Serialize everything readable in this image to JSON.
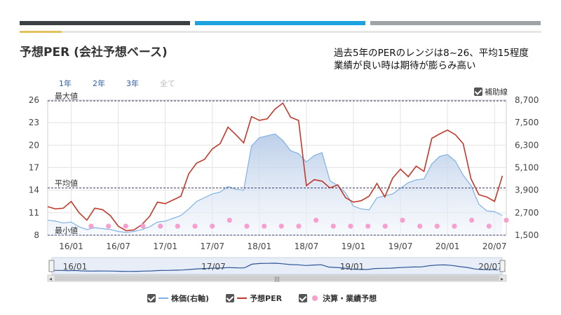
{
  "header": {
    "title": "予想PER (会社予想ベース)",
    "annotation_line1": "過去5年のPERのレンジは8~26、平均15程度",
    "annotation_line2": "業績が良い時は期待が膨らみ高い"
  },
  "range_tabs": [
    {
      "label": "1年",
      "active": true
    },
    {
      "label": "2年",
      "active": true
    },
    {
      "label": "3年",
      "active": true
    },
    {
      "label": "全て",
      "active": false
    }
  ],
  "aux_label": "補助線",
  "legend": [
    {
      "label": "株価(右軸)",
      "color": "#7fb2e5"
    },
    {
      "label": "予想PER",
      "color": "#c0392b"
    },
    {
      "label": "決算・業績予想",
      "color": "#f6a0d0"
    }
  ],
  "chart_data": {
    "type": "line",
    "x_ticks": [
      "16/01",
      "16/07",
      "17/01",
      "17/07",
      "18/01",
      "18/07",
      "19/01",
      "19/07",
      "20/01",
      "20/07"
    ],
    "y_left_ticks": [
      "26",
      "23",
      "20",
      "17",
      "14",
      "11",
      "8"
    ],
    "y_right_ticks": [
      "8,700",
      "7,500",
      "6,300",
      "5,100",
      "3,900",
      "2,700",
      "1,500"
    ],
    "y_left_range": [
      8,
      26
    ],
    "y_right_range": [
      1500,
      8700
    ],
    "reference_lines": [
      {
        "label": "最大値",
        "value": 25.9
      },
      {
        "label": "平均値",
        "value": 14.3
      },
      {
        "label": "最小値",
        "value": 8.0
      }
    ],
    "series": [
      {
        "name": "予想PER",
        "color": "#c0392b",
        "axis": "left",
        "x": [
          "15/10",
          "15/11",
          "15/12",
          "16/01",
          "16/02",
          "16/03",
          "16/04",
          "16/05",
          "16/06",
          "16/07",
          "16/08",
          "16/09",
          "16/10",
          "16/11",
          "16/12",
          "17/01",
          "17/02",
          "17/03",
          "17/04",
          "17/05",
          "17/06",
          "17/07",
          "17/08",
          "17/09",
          "17/10",
          "17/11",
          "17/12",
          "18/01",
          "18/02",
          "18/03",
          "18/04",
          "18/05",
          "18/06",
          "18/07",
          "18/08",
          "18/09",
          "18/10",
          "18/11",
          "18/12",
          "19/01",
          "19/02",
          "19/03",
          "19/04",
          "19/05",
          "19/06",
          "19/07",
          "19/08",
          "19/09",
          "19/10",
          "19/11",
          "19/12",
          "20/01",
          "20/02",
          "20/03",
          "20/04",
          "20/05",
          "20/06",
          "20/07",
          "20/08"
        ],
        "values": [
          11.8,
          11.5,
          11.6,
          12.5,
          11.0,
          10.0,
          11.6,
          11.4,
          10.6,
          9.2,
          8.6,
          8.7,
          9.4,
          10.5,
          12.4,
          12.2,
          12.7,
          13.2,
          16.2,
          17.6,
          18.1,
          19.5,
          20.2,
          22.4,
          21.4,
          20.3,
          23.8,
          23.3,
          23.5,
          24.8,
          25.6,
          23.7,
          23.3,
          14.6,
          15.4,
          15.2,
          14.3,
          14.7,
          13.0,
          12.4,
          12.6,
          13.2,
          14.9,
          13.1,
          15.6,
          16.8,
          15.8,
          17.2,
          16.5,
          20.9,
          21.5,
          22.0,
          21.4,
          20.2,
          15.5,
          13.4,
          13.1,
          12.5,
          15.9
        ]
      },
      {
        "name": "株価(右軸)",
        "color": "#7fb2e5",
        "axis": "right",
        "x": [
          "15/10",
          "15/11",
          "15/12",
          "16/01",
          "16/02",
          "16/03",
          "16/04",
          "16/05",
          "16/06",
          "16/07",
          "16/08",
          "16/09",
          "16/10",
          "16/11",
          "16/12",
          "17/01",
          "17/02",
          "17/03",
          "17/04",
          "17/05",
          "17/06",
          "17/07",
          "17/08",
          "17/09",
          "17/10",
          "17/11",
          "17/12",
          "18/01",
          "18/02",
          "18/03",
          "18/04",
          "18/05",
          "18/06",
          "18/07",
          "18/08",
          "18/09",
          "18/10",
          "18/11",
          "18/12",
          "19/01",
          "19/02",
          "19/03",
          "19/04",
          "19/05",
          "19/06",
          "19/07",
          "19/08",
          "19/09",
          "19/10",
          "19/11",
          "19/12",
          "20/01",
          "20/02",
          "20/03",
          "20/04",
          "20/05",
          "20/06",
          "20/07",
          "20/08"
        ],
        "values": [
          2300,
          2250,
          2150,
          2200,
          1950,
          1800,
          1900,
          1850,
          1800,
          1700,
          1650,
          1700,
          1800,
          1950,
          2200,
          2250,
          2400,
          2550,
          2900,
          3300,
          3500,
          3700,
          3800,
          4100,
          3950,
          3900,
          6250,
          6700,
          6800,
          6900,
          6550,
          6000,
          5850,
          5400,
          5750,
          5900,
          4400,
          4150,
          3750,
          3050,
          2900,
          2850,
          3500,
          3600,
          3700,
          4000,
          4300,
          4450,
          4500,
          5300,
          5700,
          5800,
          5450,
          4700,
          4150,
          3150,
          2800,
          2750,
          2550
        ]
      }
    ],
    "events_left_values": [
      9.2,
      9.2,
      9.2,
      9.2,
      9.2,
      9.2,
      9.2,
      9.2,
      10.0,
      9.2,
      9.2,
      9.2,
      9.2,
      10.0,
      9.2,
      9.2,
      9.2,
      9.2,
      10.0,
      9.2,
      9.2,
      9.2,
      10.0,
      9.2,
      10.0
    ]
  }
}
